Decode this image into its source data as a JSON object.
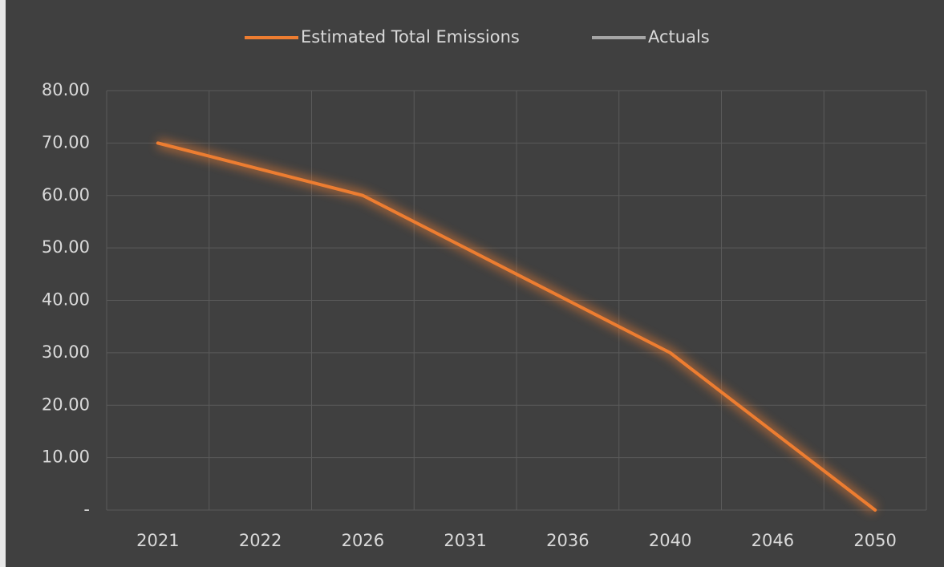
{
  "chart_data": {
    "type": "line",
    "categories": [
      "2021",
      "2022",
      "2026",
      "2031",
      "2036",
      "2040",
      "2046",
      "2050"
    ],
    "series": [
      {
        "name": "Estimated Total Emissions",
        "color": "#ed7d31",
        "values": [
          70,
          65,
          60,
          50,
          40,
          30,
          15,
          0
        ]
      },
      {
        "name": "Actuals",
        "color": "#a5a5a5",
        "values": [
          null,
          null,
          null,
          null,
          null,
          null,
          null,
          null
        ]
      }
    ],
    "ylim": [
      0,
      80
    ],
    "yticks": [
      {
        "value": 0,
        "label": "-"
      },
      {
        "value": 10,
        "label": "10.00"
      },
      {
        "value": 20,
        "label": "20.00"
      },
      {
        "value": 30,
        "label": "30.00"
      },
      {
        "value": 40,
        "label": "40.00"
      },
      {
        "value": 50,
        "label": "50.00"
      },
      {
        "value": 60,
        "label": "60.00"
      },
      {
        "value": 70,
        "label": "70.00"
      },
      {
        "value": 80,
        "label": "80.00"
      }
    ],
    "grid": true,
    "legend": "top"
  }
}
